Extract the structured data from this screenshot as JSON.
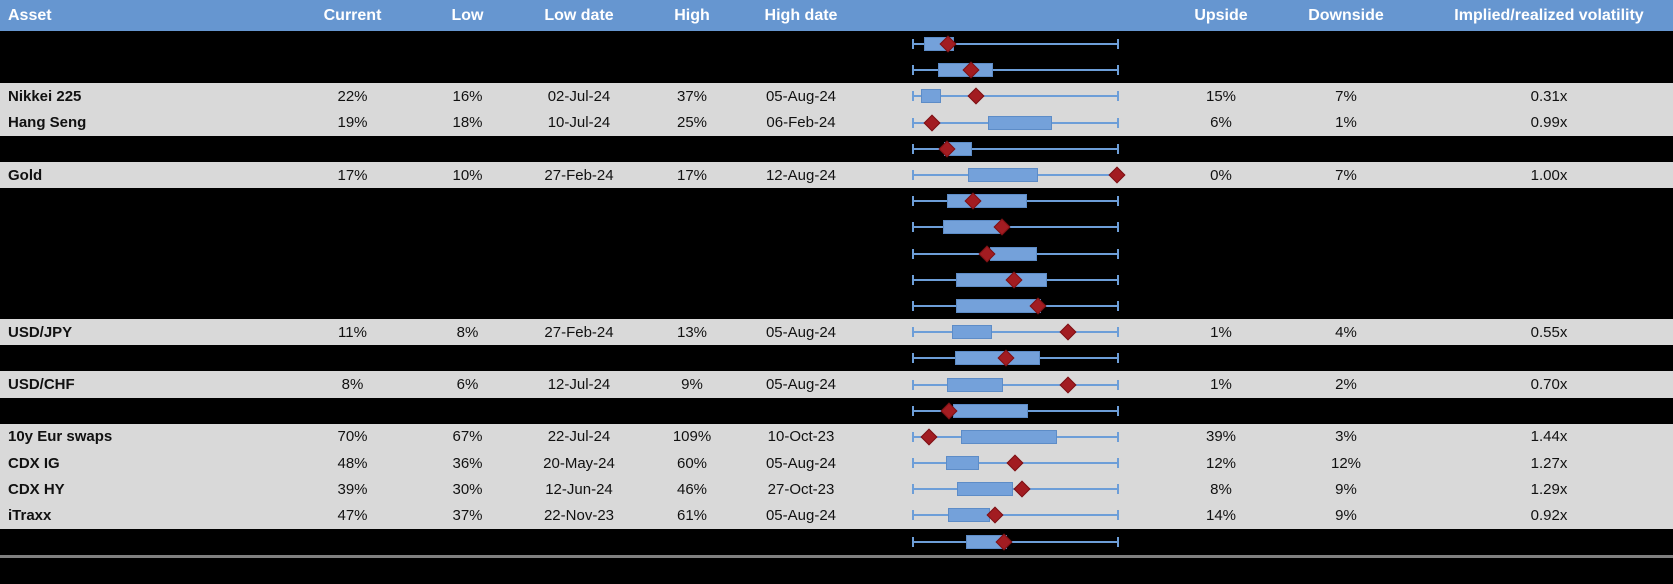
{
  "header": {
    "asset": "Asset",
    "current": "Current",
    "low": "Low",
    "low_date": "Low date",
    "high": "High",
    "high_date": "High date",
    "upside": "Upside",
    "downside": "Downside",
    "implied": "Implied/realized volatility"
  },
  "colors": {
    "header_bg": "#6696d0",
    "row_light_bg": "#d9d9d9",
    "row_dark_bg": "#000000",
    "box_fill": "#74a1da",
    "box_border": "#5d8cc7",
    "whisker": "#6d9ed8",
    "marker": "#a21c21",
    "divider": "#7f7f7f"
  },
  "chart_data": {
    "type": "boxplot-table",
    "note": "each row: box = [start,end] and marker = current value, as fractions 0-1 of the min-to-max whisker span",
    "rows": [
      {
        "asset": "",
        "plot": {
          "box": [
            0.054,
            0.2
          ],
          "marker": 0.172
        }
      },
      {
        "asset": "",
        "plot": {
          "box": [
            0.124,
            0.392
          ],
          "marker": 0.283
        }
      },
      {
        "asset": "Nikkei 225",
        "current": "22%",
        "low": "16%",
        "low_date": "02-Jul-24",
        "high": "37%",
        "high_date": "05-Aug-24",
        "upside": "15%",
        "downside": "7%",
        "implied": "0.31x",
        "plot": {
          "box": [
            0.039,
            0.135
          ],
          "marker": 0.307
        }
      },
      {
        "asset": "Hang Seng",
        "current": "19%",
        "low": "18%",
        "low_date": "10-Jul-24",
        "high": "25%",
        "high_date": "06-Feb-24",
        "upside": "6%",
        "downside": "1%",
        "implied": "0.99x",
        "plot": {
          "box": [
            0.367,
            0.677
          ],
          "marker": 0.094
        }
      },
      {
        "asset": "",
        "plot": {
          "box": [
            0.153,
            0.286
          ],
          "marker": 0.166
        }
      },
      {
        "asset": "Gold",
        "current": "17%",
        "low": "10%",
        "low_date": "27-Feb-24",
        "high": "17%",
        "high_date": "12-Aug-24",
        "upside": "0%",
        "downside": "7%",
        "implied": "1.00x",
        "plot": {
          "box": [
            0.27,
            0.611
          ],
          "marker": 0.994
        }
      },
      {
        "asset": "",
        "plot": {
          "box": [
            0.164,
            0.554
          ],
          "marker": 0.294
        }
      },
      {
        "asset": "",
        "plot": {
          "box": [
            0.148,
            0.433
          ],
          "marker": 0.433
        }
      },
      {
        "asset": "",
        "plot": {
          "box": [
            0.376,
            0.606
          ],
          "marker": 0.36
        }
      },
      {
        "asset": "",
        "plot": {
          "box": [
            0.21,
            0.652
          ],
          "marker": 0.493
        }
      },
      {
        "asset": "",
        "plot": {
          "box": [
            0.21,
            0.625
          ],
          "marker": 0.611
        }
      },
      {
        "asset": "USD/JPY",
        "current": "11%",
        "low": "8%",
        "low_date": "27-Feb-24",
        "high": "13%",
        "high_date": "05-Aug-24",
        "upside": "1%",
        "downside": "4%",
        "implied": "0.55x",
        "plot": {
          "box": [
            0.189,
            0.384
          ],
          "marker": 0.758
        }
      },
      {
        "asset": "",
        "plot": {
          "box": [
            0.205,
            0.62
          ],
          "marker": 0.454
        }
      },
      {
        "asset": "USD/CHF",
        "current": "8%",
        "low": "6%",
        "low_date": "12-Jul-24",
        "high": "9%",
        "high_date": "05-Aug-24",
        "upside": "1%",
        "downside": "2%",
        "implied": "0.70x",
        "plot": {
          "box": [
            0.164,
            0.44
          ],
          "marker": 0.757
        }
      },
      {
        "asset": "",
        "plot": {
          "box": [
            0.197,
            0.563
          ],
          "marker": 0.177
        }
      },
      {
        "asset": "10y Eur swaps",
        "current": "70%",
        "low": "67%",
        "low_date": "22-Jul-24",
        "high": "109%",
        "high_date": "10-Oct-23",
        "upside": "39%",
        "downside": "3%",
        "implied": "1.44x",
        "plot": {
          "box": [
            0.233,
            0.704
          ],
          "marker": 0.08
        }
      },
      {
        "asset": "CDX IG",
        "current": "48%",
        "low": "36%",
        "low_date": "20-May-24",
        "high": "60%",
        "high_date": "05-Aug-24",
        "upside": "12%",
        "downside": "12%",
        "implied": "1.27x",
        "plot": {
          "box": [
            0.161,
            0.324
          ],
          "marker": 0.498
        }
      },
      {
        "asset": "CDX HY",
        "current": "39%",
        "low": "30%",
        "low_date": "12-Jun-24",
        "high": "46%",
        "high_date": "27-Oct-23",
        "upside": "8%",
        "downside": "9%",
        "implied": "1.29x",
        "plot": {
          "box": [
            0.216,
            0.489
          ],
          "marker": 0.53
        }
      },
      {
        "asset": "iTraxx",
        "current": "47%",
        "low": "37%",
        "low_date": "22-Nov-23",
        "high": "61%",
        "high_date": "05-Aug-24",
        "upside": "14%",
        "downside": "9%",
        "implied": "0.92x",
        "plot": {
          "box": [
            0.172,
            0.376
          ],
          "marker": 0.4
        }
      },
      {
        "asset": "",
        "plot": {
          "box": [
            0.259,
            0.457
          ],
          "marker": 0.444
        }
      }
    ]
  }
}
